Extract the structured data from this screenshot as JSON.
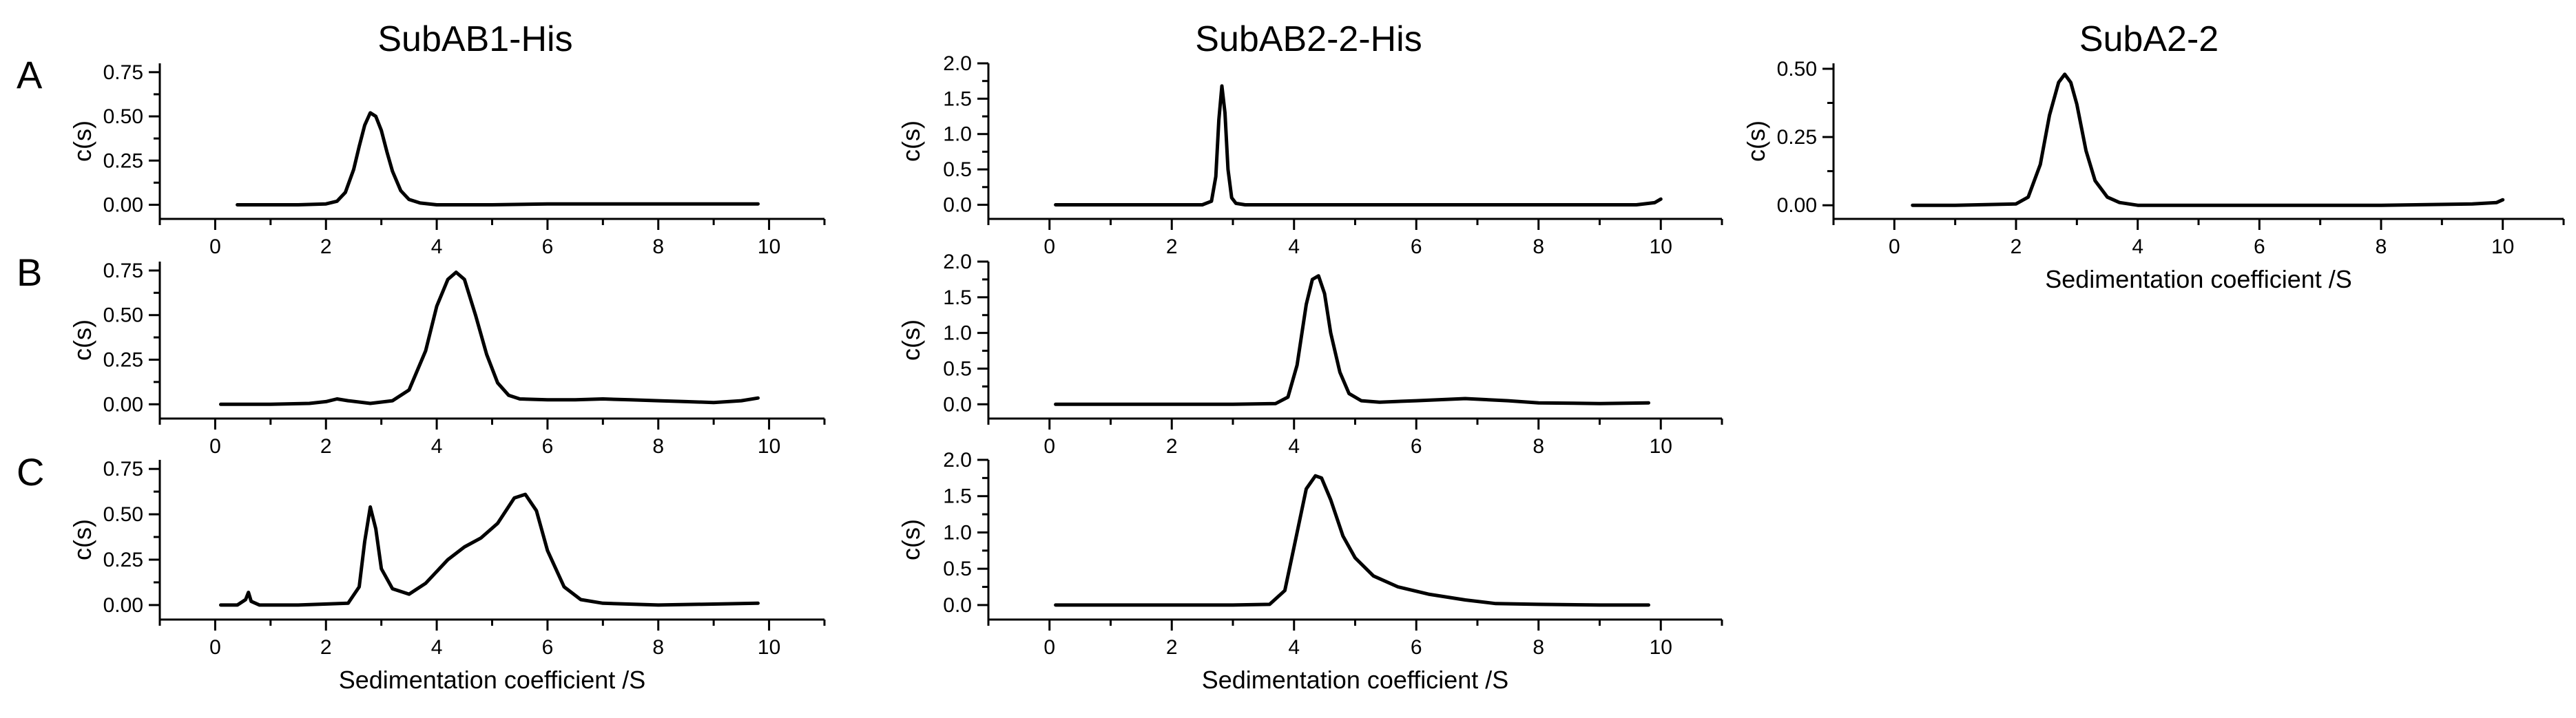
{
  "columns": {
    "col1": "SubAB1-His",
    "col2": "SubAB2-2-His",
    "col3": "SubA2-2"
  },
  "rows": {
    "A": "A",
    "B": "B",
    "C": "C"
  },
  "chart_data": [
    {
      "id": "A1",
      "type": "line",
      "row": "A",
      "column": "SubAB1-His",
      "xlabel": "",
      "ylabel": "c(s)",
      "xlim": [
        -1,
        11
      ],
      "ylim": [
        -0.08,
        0.8
      ],
      "xticks": [
        0,
        2,
        4,
        6,
        8,
        10
      ],
      "yticks": [
        0.0,
        0.25,
        0.5,
        0.75
      ],
      "ytick_labels": [
        "0.00",
        "0.25",
        "0.50",
        "0.75"
      ],
      "series": [
        {
          "x": [
            0.4,
            1.0,
            1.5,
            2.0,
            2.2,
            2.35,
            2.5,
            2.6,
            2.7,
            2.8,
            2.9,
            3.0,
            3.1,
            3.2,
            3.35,
            3.5,
            3.7,
            4.0,
            5.0,
            6.0,
            7.0,
            8.0,
            9.0,
            9.8
          ],
          "y": [
            0.0,
            0.0,
            0.0,
            0.005,
            0.02,
            0.07,
            0.2,
            0.33,
            0.45,
            0.52,
            0.5,
            0.42,
            0.3,
            0.19,
            0.08,
            0.03,
            0.01,
            0.0,
            0.0,
            0.005,
            0.005,
            0.005,
            0.005,
            0.005
          ]
        }
      ]
    },
    {
      "id": "A2",
      "type": "line",
      "row": "A",
      "column": "SubAB2-2-His",
      "xlabel": "",
      "ylabel": "c(s)",
      "xlim": [
        -1,
        11
      ],
      "ylim": [
        -0.2,
        2.0
      ],
      "xticks": [
        0,
        2,
        4,
        6,
        8,
        10
      ],
      "yticks": [
        0.0,
        0.5,
        1.0,
        1.5,
        2.0
      ],
      "ytick_labels": [
        "0.0",
        "0.5",
        "1.0",
        "1.5",
        "2.0"
      ],
      "series": [
        {
          "x": [
            0.1,
            1.0,
            2.0,
            2.5,
            2.65,
            2.72,
            2.77,
            2.82,
            2.87,
            2.92,
            2.98,
            3.05,
            3.2,
            4.0,
            6.0,
            8.0,
            9.6,
            9.9,
            10.0
          ],
          "y": [
            0.0,
            0.0,
            0.0,
            0.0,
            0.05,
            0.4,
            1.2,
            1.68,
            1.3,
            0.5,
            0.1,
            0.02,
            0.0,
            0.0,
            0.0,
            0.0,
            0.0,
            0.03,
            0.08
          ]
        }
      ]
    },
    {
      "id": "A3",
      "type": "line",
      "row": "A",
      "column": "SubA2-2",
      "xlabel": "Sedimentation coefficient /S",
      "ylabel": "c(s)",
      "xlim": [
        -1,
        11
      ],
      "ylim": [
        -0.05,
        0.52
      ],
      "xticks": [
        0,
        2,
        4,
        6,
        8,
        10
      ],
      "yticks": [
        0.0,
        0.25,
        0.5
      ],
      "ytick_labels": [
        "0.00",
        "0.25",
        "0.50"
      ],
      "series": [
        {
          "x": [
            0.3,
            1.0,
            2.0,
            2.2,
            2.4,
            2.55,
            2.7,
            2.8,
            2.9,
            3.0,
            3.15,
            3.3,
            3.5,
            3.7,
            4.0,
            5.0,
            6.0,
            8.0,
            9.5,
            9.9,
            10.0
          ],
          "y": [
            0.0,
            0.0,
            0.005,
            0.03,
            0.15,
            0.33,
            0.45,
            0.48,
            0.45,
            0.37,
            0.2,
            0.09,
            0.03,
            0.01,
            0.0,
            0.0,
            0.0,
            0.0,
            0.005,
            0.01,
            0.02
          ]
        }
      ]
    },
    {
      "id": "B1",
      "type": "line",
      "row": "B",
      "column": "SubAB1-His",
      "xlabel": "",
      "ylabel": "c(s)",
      "xlim": [
        -1,
        11
      ],
      "ylim": [
        -0.08,
        0.8
      ],
      "xticks": [
        0,
        2,
        4,
        6,
        8,
        10
      ],
      "yticks": [
        0.0,
        0.25,
        0.5,
        0.75
      ],
      "ytick_labels": [
        "0.00",
        "0.25",
        "0.50",
        "0.75"
      ],
      "series": [
        {
          "x": [
            0.1,
            1.0,
            1.7,
            2.0,
            2.2,
            2.4,
            2.8,
            3.2,
            3.5,
            3.8,
            4.0,
            4.2,
            4.35,
            4.5,
            4.7,
            4.9,
            5.1,
            5.3,
            5.5,
            6.0,
            6.5,
            7.0,
            7.5,
            8.0,
            8.5,
            9.0,
            9.5,
            9.8
          ],
          "y": [
            0.0,
            0.0,
            0.005,
            0.015,
            0.03,
            0.02,
            0.005,
            0.02,
            0.08,
            0.3,
            0.55,
            0.7,
            0.74,
            0.7,
            0.5,
            0.28,
            0.12,
            0.05,
            0.03,
            0.025,
            0.025,
            0.03,
            0.025,
            0.02,
            0.015,
            0.01,
            0.02,
            0.035
          ]
        }
      ]
    },
    {
      "id": "B2",
      "type": "line",
      "row": "B",
      "column": "SubAB2-2-His",
      "xlabel": "",
      "ylabel": "c(s)",
      "xlim": [
        -1,
        11
      ],
      "ylim": [
        -0.2,
        2.0
      ],
      "xticks": [
        0,
        2,
        4,
        6,
        8,
        10
      ],
      "yticks": [
        0.0,
        0.5,
        1.0,
        1.5,
        2.0
      ],
      "ytick_labels": [
        "0.0",
        "0.5",
        "1.0",
        "1.5",
        "2.0"
      ],
      "series": [
        {
          "x": [
            0.1,
            1.0,
            2.0,
            3.0,
            3.7,
            3.9,
            4.05,
            4.2,
            4.3,
            4.4,
            4.5,
            4.6,
            4.75,
            4.9,
            5.1,
            5.4,
            6.0,
            6.8,
            7.5,
            8.0,
            9.0,
            9.8
          ],
          "y": [
            0.0,
            0.0,
            0.0,
            0.0,
            0.01,
            0.1,
            0.55,
            1.4,
            1.75,
            1.8,
            1.55,
            1.0,
            0.45,
            0.15,
            0.05,
            0.03,
            0.05,
            0.08,
            0.05,
            0.02,
            0.01,
            0.02
          ]
        }
      ]
    },
    {
      "id": "C1",
      "type": "line",
      "row": "C",
      "column": "SubAB1-His",
      "xlabel": "Sedimentation coefficient /S",
      "ylabel": "c(s)",
      "xlim": [
        -1,
        11
      ],
      "ylim": [
        -0.08,
        0.8
      ],
      "xticks": [
        0,
        2,
        4,
        6,
        8,
        10
      ],
      "yticks": [
        0.0,
        0.25,
        0.5,
        0.75
      ],
      "ytick_labels": [
        "0.00",
        "0.25",
        "0.50",
        "0.75"
      ],
      "series": [
        {
          "x": [
            0.1,
            0.4,
            0.55,
            0.6,
            0.65,
            0.8,
            1.5,
            2.4,
            2.6,
            2.7,
            2.8,
            2.9,
            3.0,
            3.2,
            3.5,
            3.8,
            4.2,
            4.5,
            4.8,
            5.1,
            5.4,
            5.6,
            5.8,
            6.0,
            6.3,
            6.6,
            7.0,
            8.0,
            9.8
          ],
          "y": [
            0.0,
            0.0,
            0.03,
            0.07,
            0.02,
            0.0,
            0.0,
            0.01,
            0.1,
            0.35,
            0.54,
            0.42,
            0.2,
            0.09,
            0.06,
            0.12,
            0.25,
            0.32,
            0.37,
            0.45,
            0.59,
            0.61,
            0.52,
            0.3,
            0.1,
            0.03,
            0.01,
            0.0,
            0.01
          ]
        }
      ]
    },
    {
      "id": "C2",
      "type": "line",
      "row": "C",
      "column": "SubAB2-2-His",
      "xlabel": "Sedimentation coefficient /S",
      "ylabel": "c(s)",
      "xlim": [
        -1,
        11
      ],
      "ylim": [
        -0.2,
        2.0
      ],
      "xticks": [
        0,
        2,
        4,
        6,
        8,
        10
      ],
      "yticks": [
        0.0,
        0.5,
        1.0,
        1.5,
        2.0
      ],
      "ytick_labels": [
        "0.0",
        "0.5",
        "1.0",
        "1.5",
        "2.0"
      ],
      "series": [
        {
          "x": [
            0.1,
            1.0,
            2.0,
            3.0,
            3.6,
            3.85,
            4.0,
            4.2,
            4.35,
            4.45,
            4.6,
            4.8,
            5.0,
            5.3,
            5.7,
            6.2,
            6.8,
            7.3,
            8.0,
            9.0,
            9.8
          ],
          "y": [
            0.0,
            0.0,
            0.0,
            0.0,
            0.01,
            0.2,
            0.8,
            1.6,
            1.78,
            1.75,
            1.45,
            0.95,
            0.65,
            0.4,
            0.25,
            0.15,
            0.07,
            0.02,
            0.01,
            0.0,
            0.0
          ]
        }
      ]
    }
  ]
}
